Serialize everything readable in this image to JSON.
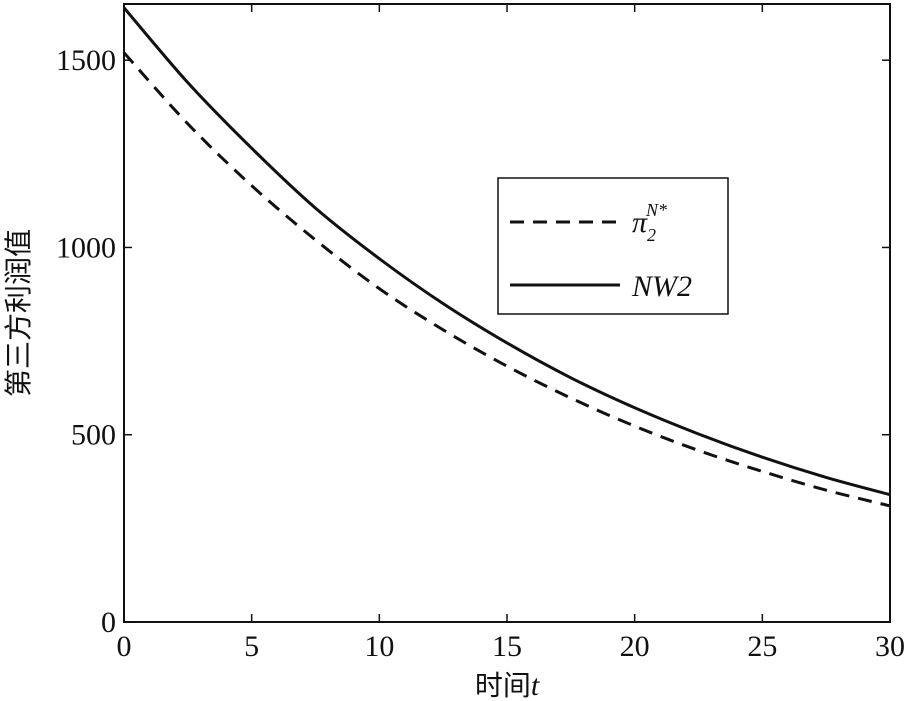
{
  "chart_data": {
    "type": "line",
    "title": "",
    "xlabel": "时间t",
    "xlabel_text": "时间",
    "xlabel_var": "t",
    "ylabel": "第三方利润值",
    "xlim": [
      0,
      30
    ],
    "ylim": [
      0,
      1650
    ],
    "xticks": [
      0,
      5,
      10,
      15,
      20,
      25,
      30
    ],
    "yticks": [
      0,
      500,
      1000,
      1500
    ],
    "grid": false,
    "legend_position": "upper-right",
    "series": [
      {
        "name": "π2N*",
        "legend_main": "π",
        "legend_sub": "2",
        "legend_sup": "N*",
        "style": "dashed",
        "color": "#111111",
        "x": [
          0,
          2.5,
          5,
          7.5,
          10,
          12.5,
          15,
          17.5,
          20,
          22.5,
          25,
          27.5,
          30
        ],
        "y": [
          1520,
          1330,
          1165,
          1020,
          890,
          780,
          683,
          598,
          523,
          458,
          402,
          352,
          310
        ]
      },
      {
        "name": "NW2",
        "legend_main": "NW2",
        "style": "solid",
        "color": "#111111",
        "x": [
          0,
          2.5,
          5,
          7.5,
          10,
          12.5,
          15,
          17.5,
          20,
          22.5,
          25,
          27.5,
          30
        ],
        "y": [
          1640,
          1440,
          1265,
          1105,
          970,
          850,
          745,
          652,
          572,
          502,
          440,
          386,
          340
        ]
      }
    ]
  }
}
